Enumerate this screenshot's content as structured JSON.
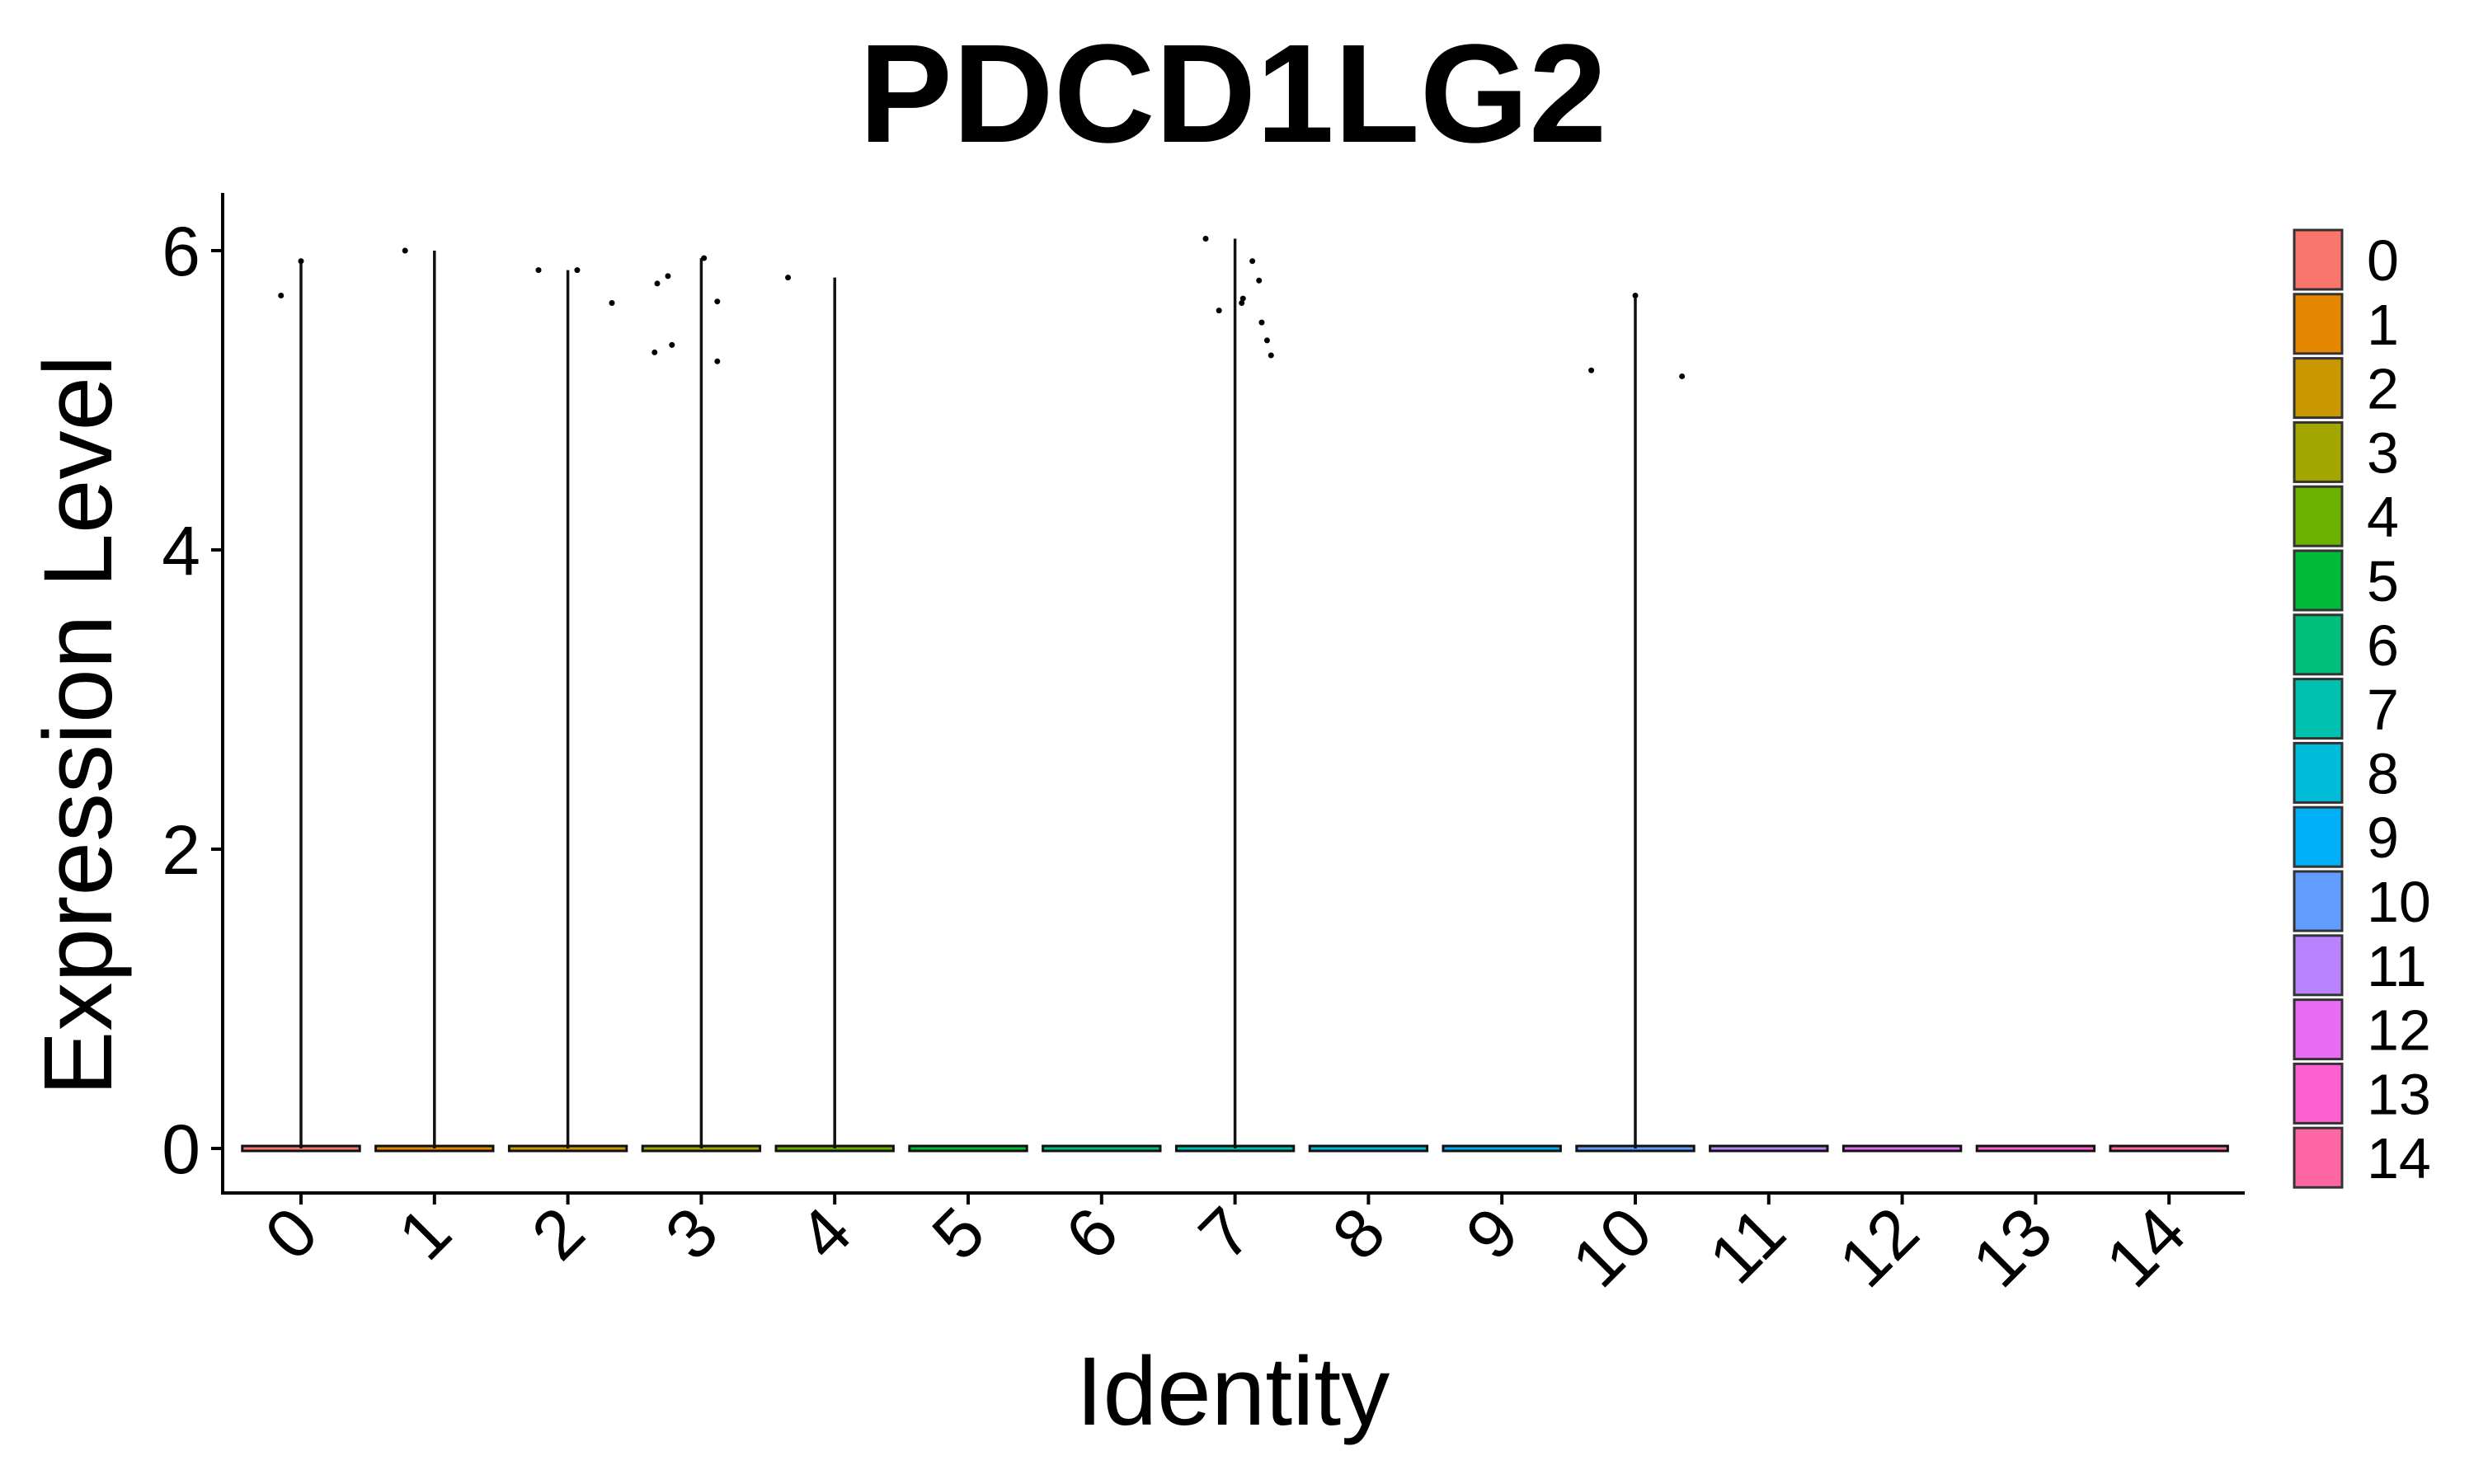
{
  "chart_data": {
    "type": "violin",
    "title": "PDCD1LG2",
    "xlabel": "Identity",
    "ylabel": "Expression Level",
    "ylim": [
      -0.3,
      6.4
    ],
    "yticks": [
      0,
      2,
      4,
      6
    ],
    "categories": [
      "0",
      "1",
      "2",
      "3",
      "4",
      "5",
      "6",
      "7",
      "8",
      "9",
      "10",
      "11",
      "12",
      "13",
      "14"
    ],
    "colors": [
      "#F8766D",
      "#E58700",
      "#C99800",
      "#A3A500",
      "#6BB100",
      "#00BA38",
      "#00BF7D",
      "#00C0AF",
      "#00BCD8",
      "#00B0F6",
      "#619CFF",
      "#B983FF",
      "#E76BF3",
      "#FD61D1",
      "#FF67A4"
    ],
    "violin_max": [
      5.93,
      6.0,
      5.87,
      5.95,
      5.82,
      0,
      0,
      6.08,
      0,
      0,
      5.7,
      0,
      0,
      0,
      0
    ],
    "points": [
      {
        "group": "0",
        "x_offset": -0.15,
        "y": 5.7
      },
      {
        "group": "0",
        "x_offset": 0.0,
        "y": 5.93
      },
      {
        "group": "1",
        "x_offset": -0.22,
        "y": 6.0
      },
      {
        "group": "2",
        "x_offset": -0.22,
        "y": 5.87
      },
      {
        "group": "2",
        "x_offset": 0.07,
        "y": 5.87
      },
      {
        "group": "2",
        "x_offset": 0.33,
        "y": 5.65
      },
      {
        "group": "3",
        "x_offset": -0.33,
        "y": 5.78
      },
      {
        "group": "3",
        "x_offset": -0.25,
        "y": 5.83
      },
      {
        "group": "3",
        "x_offset": -0.35,
        "y": 5.32
      },
      {
        "group": "3",
        "x_offset": -0.22,
        "y": 5.37
      },
      {
        "group": "3",
        "x_offset": 0.02,
        "y": 5.95
      },
      {
        "group": "3",
        "x_offset": 0.12,
        "y": 5.66
      },
      {
        "group": "3",
        "x_offset": 0.12,
        "y": 5.26
      },
      {
        "group": "4",
        "x_offset": -0.35,
        "y": 5.82
      },
      {
        "group": "7",
        "x_offset": -0.22,
        "y": 6.08
      },
      {
        "group": "7",
        "x_offset": -0.12,
        "y": 5.6
      },
      {
        "group": "7",
        "x_offset": 0.05,
        "y": 5.65
      },
      {
        "group": "7",
        "x_offset": 0.06,
        "y": 5.68
      },
      {
        "group": "7",
        "x_offset": 0.13,
        "y": 5.93
      },
      {
        "group": "7",
        "x_offset": 0.18,
        "y": 5.8
      },
      {
        "group": "7",
        "x_offset": 0.2,
        "y": 5.52
      },
      {
        "group": "7",
        "x_offset": 0.24,
        "y": 5.4
      },
      {
        "group": "7",
        "x_offset": 0.27,
        "y": 5.3
      },
      {
        "group": "10",
        "x_offset": -0.33,
        "y": 5.2
      },
      {
        "group": "10",
        "x_offset": 0.0,
        "y": 5.7
      },
      {
        "group": "10",
        "x_offset": 0.35,
        "y": 5.16
      }
    ],
    "legend": {
      "position": "right",
      "entries": [
        "0",
        "1",
        "2",
        "3",
        "4",
        "5",
        "6",
        "7",
        "8",
        "9",
        "10",
        "11",
        "12",
        "13",
        "14"
      ]
    },
    "grid": false
  }
}
